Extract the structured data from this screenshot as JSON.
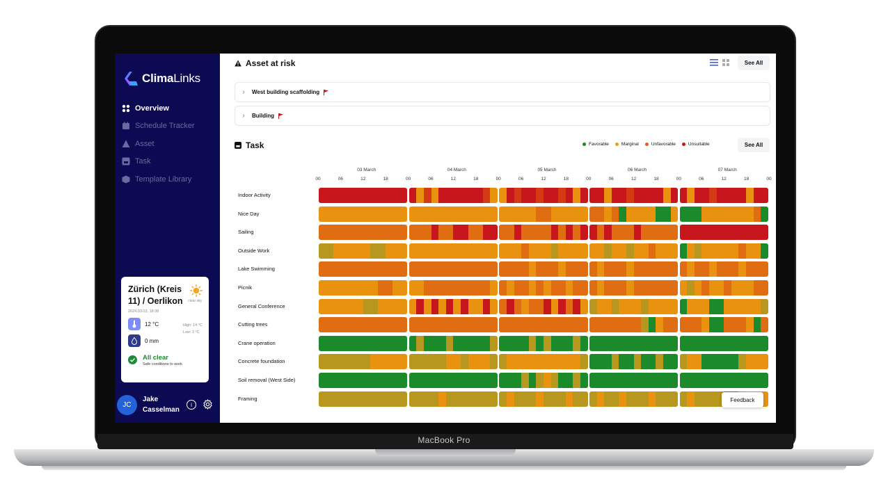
{
  "device": {
    "label": "MacBook Pro"
  },
  "app": {
    "name_bold": "Clima",
    "name_light": "Links"
  },
  "sidebar": {
    "items": [
      {
        "label": "Overview",
        "icon": "grid-icon",
        "active": true
      },
      {
        "label": "Schedule Tracker",
        "icon": "calendar-icon",
        "active": false
      },
      {
        "label": "Asset",
        "icon": "warning-icon",
        "active": false
      },
      {
        "label": "Task",
        "icon": "task-icon",
        "active": false
      },
      {
        "label": "Template Library",
        "icon": "box-icon",
        "active": false
      }
    ]
  },
  "weather": {
    "city": "Zürich (Kreis 11) / Oerlikon",
    "condition": "clear sky",
    "datetime": "2024.03.03, 18:38",
    "temperature": "12 °C",
    "high": "High: 14 °C",
    "low": "Low: 3 °C",
    "precipitation": "0 mm",
    "status_title": "All clear",
    "status_subtitle": "Safe conditions to work"
  },
  "user": {
    "initials": "JC",
    "first_name": "Jake",
    "last_name": "Casselman"
  },
  "assets": {
    "title": "Asset at risk",
    "see_all": "See All",
    "rows": [
      {
        "label": "West building scaffolding"
      },
      {
        "label": "Building"
      }
    ]
  },
  "tasks": {
    "title": "Task",
    "see_all": "See All",
    "legend": [
      {
        "label": "Favorable",
        "color": "#1b8a2a"
      },
      {
        "label": "Marginal",
        "color": "#e8a11a"
      },
      {
        "label": "Unfavorable",
        "color": "#e0601a"
      },
      {
        "label": "Unsuitable",
        "color": "#c8151b"
      }
    ],
    "days": [
      "03 March",
      "04 March",
      "05 March",
      "06 March",
      "07 March"
    ],
    "hours": [
      "00",
      "06",
      "12",
      "18",
      "00",
      "06",
      "12",
      "18",
      "00",
      "06",
      "12",
      "18",
      "00",
      "06",
      "12",
      "18",
      "00",
      "06",
      "12",
      "18",
      "00"
    ],
    "rows": [
      {
        "label": "Indoor Activity",
        "segments": [
          [
            "U",
            "U",
            "U",
            "U",
            "U",
            "U",
            "U",
            "U",
            "U",
            "U",
            "U",
            "U"
          ],
          [
            "U",
            "M",
            "F",
            "M",
            "U",
            "U",
            "U",
            "U",
            "U",
            "U",
            "F",
            "M"
          ],
          [
            "M",
            "U",
            "F",
            "U",
            "U",
            "F",
            "U",
            "U",
            "F",
            "U",
            "M",
            "U"
          ],
          [
            "U",
            "U",
            "M",
            "U",
            "U",
            "F",
            "U",
            "U",
            "U",
            "U",
            "M",
            "U"
          ],
          [
            "U",
            "M",
            "U",
            "U",
            "F",
            "U",
            "U",
            "U",
            "U",
            "M",
            "U",
            "U"
          ]
        ]
      },
      {
        "label": "Nice Day",
        "segments": [
          [
            "M",
            "M",
            "M",
            "M",
            "M",
            "M",
            "M",
            "M",
            "M",
            "M",
            "M",
            "M"
          ],
          [
            "M",
            "M",
            "M",
            "M",
            "M",
            "M",
            "M",
            "M",
            "M",
            "M",
            "M",
            "M"
          ],
          [
            "M",
            "M",
            "M",
            "M",
            "M",
            "N",
            "N",
            "M",
            "M",
            "M",
            "M",
            "M"
          ],
          [
            "N",
            "N",
            "M",
            "N",
            "G",
            "M",
            "M",
            "M",
            "M",
            "G",
            "G",
            "M"
          ],
          [
            "G",
            "G",
            "G",
            "M",
            "M",
            "M",
            "M",
            "M",
            "M",
            "M",
            "N",
            "G"
          ]
        ]
      },
      {
        "label": "Sailing",
        "segments": [
          [
            "N",
            "N",
            "N",
            "N",
            "N",
            "N",
            "N",
            "N",
            "N",
            "N",
            "N",
            "N"
          ],
          [
            "N",
            "N",
            "N",
            "U",
            "N",
            "N",
            "U",
            "U",
            "N",
            "N",
            "U",
            "U"
          ],
          [
            "N",
            "N",
            "U",
            "N",
            "N",
            "N",
            "N",
            "U",
            "N",
            "U",
            "N",
            "U"
          ],
          [
            "U",
            "N",
            "U",
            "N",
            "N",
            "N",
            "U",
            "N",
            "N",
            "N",
            "N",
            "N"
          ],
          [
            "U",
            "U",
            "U",
            "U",
            "U",
            "U",
            "U",
            "U",
            "U",
            "U",
            "U",
            "U"
          ]
        ]
      },
      {
        "label": "Outside Work",
        "segments": [
          [
            "Y",
            "Y",
            "M",
            "M",
            "M",
            "M",
            "M",
            "Y",
            "Y",
            "M",
            "M",
            "M"
          ],
          [
            "M",
            "M",
            "M",
            "M",
            "M",
            "M",
            "M",
            "M",
            "M",
            "M",
            "M",
            "M"
          ],
          [
            "M",
            "M",
            "M",
            "N",
            "M",
            "M",
            "M",
            "Y",
            "M",
            "M",
            "M",
            "M"
          ],
          [
            "M",
            "M",
            "Y",
            "M",
            "M",
            "Y",
            "M",
            "M",
            "N",
            "M",
            "M",
            "M"
          ],
          [
            "G",
            "M",
            "Y",
            "M",
            "M",
            "M",
            "M",
            "M",
            "N",
            "M",
            "M",
            "G"
          ]
        ]
      },
      {
        "label": "Lake Swimming",
        "segments": [
          [
            "N",
            "N",
            "N",
            "N",
            "N",
            "N",
            "N",
            "N",
            "N",
            "N",
            "N",
            "N"
          ],
          [
            "N",
            "N",
            "N",
            "N",
            "N",
            "N",
            "N",
            "N",
            "N",
            "N",
            "N",
            "N"
          ],
          [
            "N",
            "N",
            "N",
            "N",
            "M",
            "N",
            "N",
            "N",
            "M",
            "N",
            "N",
            "N"
          ],
          [
            "N",
            "M",
            "N",
            "N",
            "N",
            "M",
            "N",
            "N",
            "N",
            "N",
            "N",
            "N"
          ],
          [
            "N",
            "M",
            "N",
            "N",
            "M",
            "N",
            "N",
            "N",
            "M",
            "N",
            "N",
            "N"
          ]
        ]
      },
      {
        "label": "Picnik",
        "segments": [
          [
            "M",
            "M",
            "M",
            "M",
            "M",
            "M",
            "M",
            "M",
            "N",
            "N",
            "M",
            "M"
          ],
          [
            "M",
            "M",
            "N",
            "N",
            "N",
            "N",
            "N",
            "N",
            "N",
            "N",
            "N",
            "M"
          ],
          [
            "N",
            "M",
            "N",
            "N",
            "M",
            "N",
            "M",
            "N",
            "N",
            "M",
            "N",
            "N"
          ],
          [
            "N",
            "M",
            "N",
            "N",
            "N",
            "M",
            "N",
            "N",
            "N",
            "N",
            "N",
            "N"
          ],
          [
            "M",
            "Y",
            "M",
            "N",
            "M",
            "M",
            "N",
            "M",
            "M",
            "M",
            "N",
            "N"
          ]
        ]
      },
      {
        "label": "General Conference",
        "segments": [
          [
            "M",
            "M",
            "M",
            "M",
            "M",
            "M",
            "Y",
            "Y",
            "M",
            "M",
            "M",
            "M"
          ],
          [
            "M",
            "U",
            "M",
            "U",
            "M",
            "U",
            "M",
            "U",
            "M",
            "M",
            "U",
            "M"
          ],
          [
            "N",
            "U",
            "N",
            "M",
            "N",
            "N",
            "U",
            "M",
            "U",
            "N",
            "U",
            "M"
          ],
          [
            "Y",
            "M",
            "M",
            "Y",
            "M",
            "M",
            "M",
            "Y",
            "M",
            "M",
            "M",
            "M"
          ],
          [
            "G",
            "M",
            "M",
            "M",
            "G",
            "G",
            "M",
            "M",
            "M",
            "M",
            "M",
            "Y"
          ]
        ]
      },
      {
        "label": "Cutting trees",
        "segments": [
          [
            "N",
            "N",
            "N",
            "N",
            "N",
            "N",
            "N",
            "N",
            "N",
            "N",
            "N",
            "N"
          ],
          [
            "N",
            "N",
            "N",
            "N",
            "N",
            "N",
            "N",
            "N",
            "N",
            "N",
            "N",
            "N"
          ],
          [
            "N",
            "N",
            "N",
            "N",
            "N",
            "N",
            "N",
            "N",
            "N",
            "N",
            "N",
            "N"
          ],
          [
            "N",
            "N",
            "N",
            "N",
            "N",
            "N",
            "N",
            "Y",
            "G",
            "M",
            "N",
            "N"
          ],
          [
            "N",
            "N",
            "N",
            "M",
            "G",
            "G",
            "N",
            "N",
            "N",
            "M",
            "G",
            "N"
          ]
        ]
      },
      {
        "label": "Crane operation",
        "segments": [
          [
            "G",
            "G",
            "G",
            "G",
            "G",
            "G",
            "G",
            "G",
            "G",
            "G",
            "G",
            "G"
          ],
          [
            "G",
            "Y",
            "G",
            "G",
            "G",
            "Y",
            "G",
            "G",
            "G",
            "G",
            "G",
            "Y"
          ],
          [
            "G",
            "G",
            "G",
            "G",
            "Y",
            "G",
            "Y",
            "G",
            "G",
            "G",
            "Y",
            "G"
          ],
          [
            "G",
            "G",
            "G",
            "G",
            "G",
            "G",
            "G",
            "G",
            "G",
            "G",
            "G",
            "G"
          ],
          [
            "G",
            "G",
            "G",
            "G",
            "G",
            "G",
            "G",
            "G",
            "G",
            "G",
            "G",
            "G"
          ]
        ]
      },
      {
        "label": "Concrete foundation",
        "segments": [
          [
            "Y",
            "Y",
            "Y",
            "Y",
            "Y",
            "Y",
            "Y",
            "M",
            "M",
            "M",
            "M",
            "M"
          ],
          [
            "Y",
            "Y",
            "Y",
            "Y",
            "Y",
            "M",
            "M",
            "Y",
            "M",
            "M",
            "M",
            "Y"
          ],
          [
            "Y",
            "M",
            "M",
            "M",
            "M",
            "M",
            "M",
            "M",
            "M",
            "M",
            "M",
            "Y"
          ],
          [
            "G",
            "G",
            "G",
            "Y",
            "G",
            "G",
            "Y",
            "G",
            "G",
            "Y",
            "G",
            "G"
          ],
          [
            "Y",
            "M",
            "M",
            "G",
            "G",
            "G",
            "G",
            "G",
            "Y",
            "M",
            "M",
            "M"
          ]
        ]
      },
      {
        "label": "Soil removal (West Side)",
        "segments": [
          [
            "G",
            "G",
            "G",
            "G",
            "G",
            "G",
            "G",
            "G",
            "G",
            "G",
            "G",
            "G"
          ],
          [
            "G",
            "G",
            "G",
            "G",
            "G",
            "G",
            "G",
            "G",
            "G",
            "G",
            "G",
            "G"
          ],
          [
            "G",
            "G",
            "G",
            "Y",
            "G",
            "Y",
            "M",
            "Y",
            "G",
            "G",
            "Y",
            "G"
          ],
          [
            "G",
            "G",
            "G",
            "G",
            "G",
            "G",
            "G",
            "G",
            "G",
            "G",
            "G",
            "G"
          ],
          [
            "G",
            "G",
            "G",
            "G",
            "G",
            "G",
            "G",
            "G",
            "G",
            "G",
            "G",
            "G"
          ]
        ]
      },
      {
        "label": "Framing",
        "segments": [
          [
            "Y",
            "Y",
            "Y",
            "Y",
            "Y",
            "Y",
            "Y",
            "Y",
            "Y",
            "Y",
            "Y",
            "Y"
          ],
          [
            "Y",
            "Y",
            "Y",
            "Y",
            "M",
            "Y",
            "Y",
            "Y",
            "Y",
            "Y",
            "Y",
            "Y"
          ],
          [
            "Y",
            "M",
            "Y",
            "Y",
            "Y",
            "M",
            "Y",
            "Y",
            "Y",
            "M",
            "Y",
            "Y"
          ],
          [
            "Y",
            "M",
            "Y",
            "Y",
            "M",
            "Y",
            "Y",
            "Y",
            "M",
            "Y",
            "Y",
            "Y"
          ],
          [
            "Y",
            "M",
            "Y",
            "Y",
            "Y",
            "Y",
            "G",
            "G",
            "Y",
            "M",
            "M",
            "M"
          ]
        ]
      }
    ],
    "palette": {
      "G": "#1b8a2a",
      "Y": "#b8971e",
      "M": "#e8920f",
      "N": "#e16d12",
      "U": "#c8171c",
      "F": "#d43a14"
    }
  },
  "feedback": {
    "label": "Feedback"
  }
}
